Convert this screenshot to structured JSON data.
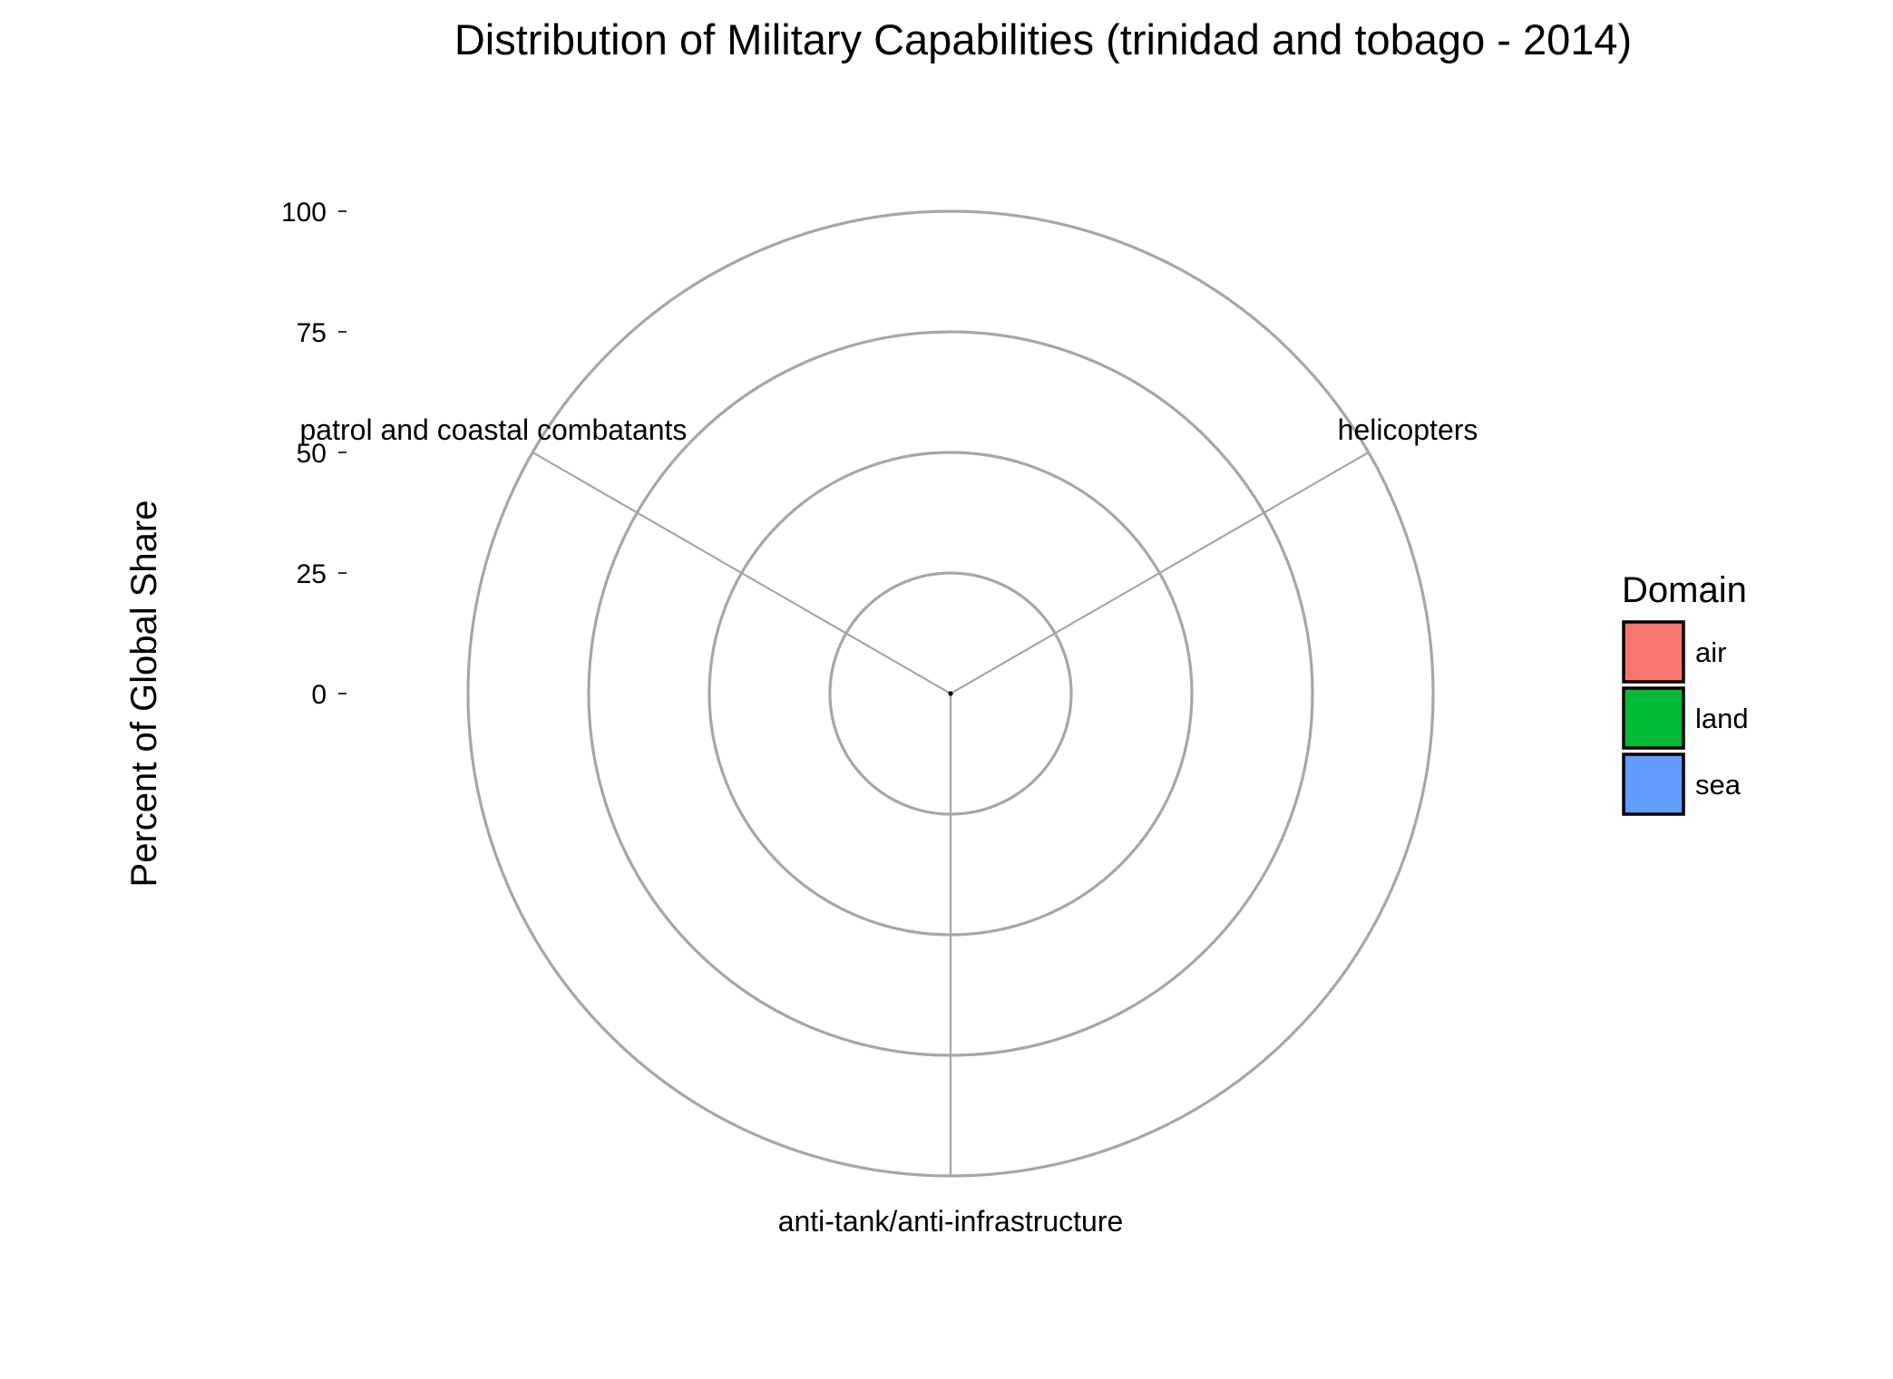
{
  "chart_data": {
    "type": "bar",
    "coord": "polar",
    "title": "Distribution of Military Capabilities (trinidad and tobago - 2014)",
    "xlabel": "",
    "ylabel": "Percent of Global Share",
    "ylim": [
      0,
      100
    ],
    "yticks": [
      "0",
      "25",
      "50",
      "75",
      "100"
    ],
    "categories": [
      "helicopters",
      "anti-tank/anti-infrastructure",
      "patrol and coastal combatants"
    ],
    "series": [
      {
        "name": "air",
        "values": [
          0,
          0,
          0
        ]
      },
      {
        "name": "land",
        "values": [
          0,
          0,
          0
        ]
      },
      {
        "name": "sea",
        "values": [
          0,
          0,
          0
        ]
      }
    ],
    "legend": {
      "title": "Domain",
      "position": "right",
      "items": [
        {
          "label": "air",
          "color": "#F8766D"
        },
        {
          "label": "land",
          "color": "#00BA38"
        },
        {
          "label": "sea",
          "color": "#619CFF"
        }
      ]
    },
    "grid": true,
    "grid_color": "#A6A6A6"
  }
}
